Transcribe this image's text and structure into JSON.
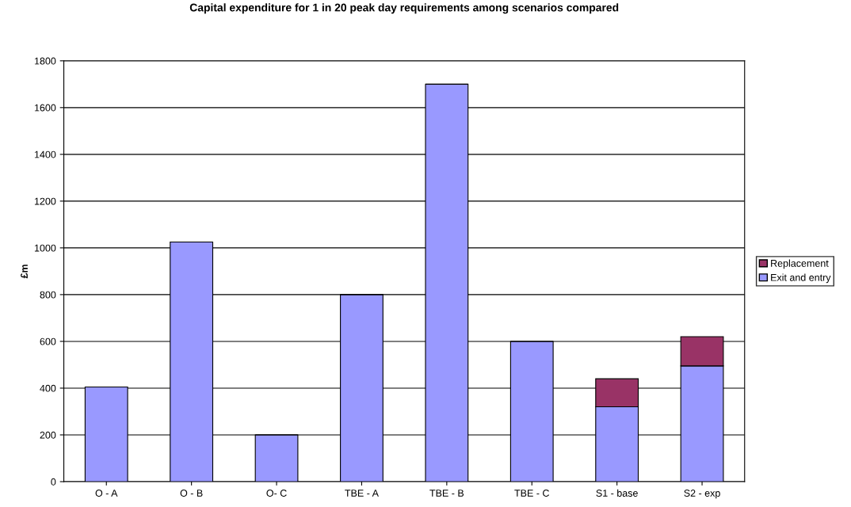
{
  "chart_data": {
    "type": "bar",
    "title": "Capital expenditure for 1 in 20 peak day requirements among scenarios compared",
    "ylabel": "£m",
    "categories": [
      "O - A",
      "O - B",
      "O- C",
      "TBE - A",
      "TBE - B",
      "TBE - C",
      "S1 - base",
      "S2 - exp"
    ],
    "stacked": true,
    "series": [
      {
        "name": "Exit and entry",
        "color": "#9999ff",
        "values": [
          405,
          1025,
          200,
          800,
          1700,
          600,
          320,
          495
        ]
      },
      {
        "name": "Replacement",
        "color": "#993366",
        "values": [
          null,
          null,
          null,
          null,
          null,
          null,
          120,
          125
        ]
      }
    ],
    "ylim": [
      0,
      1800
    ],
    "yticks": [
      0,
      200,
      400,
      600,
      800,
      1000,
      1200,
      1400,
      1600,
      1800
    ],
    "grid": "y",
    "legend": "right"
  }
}
